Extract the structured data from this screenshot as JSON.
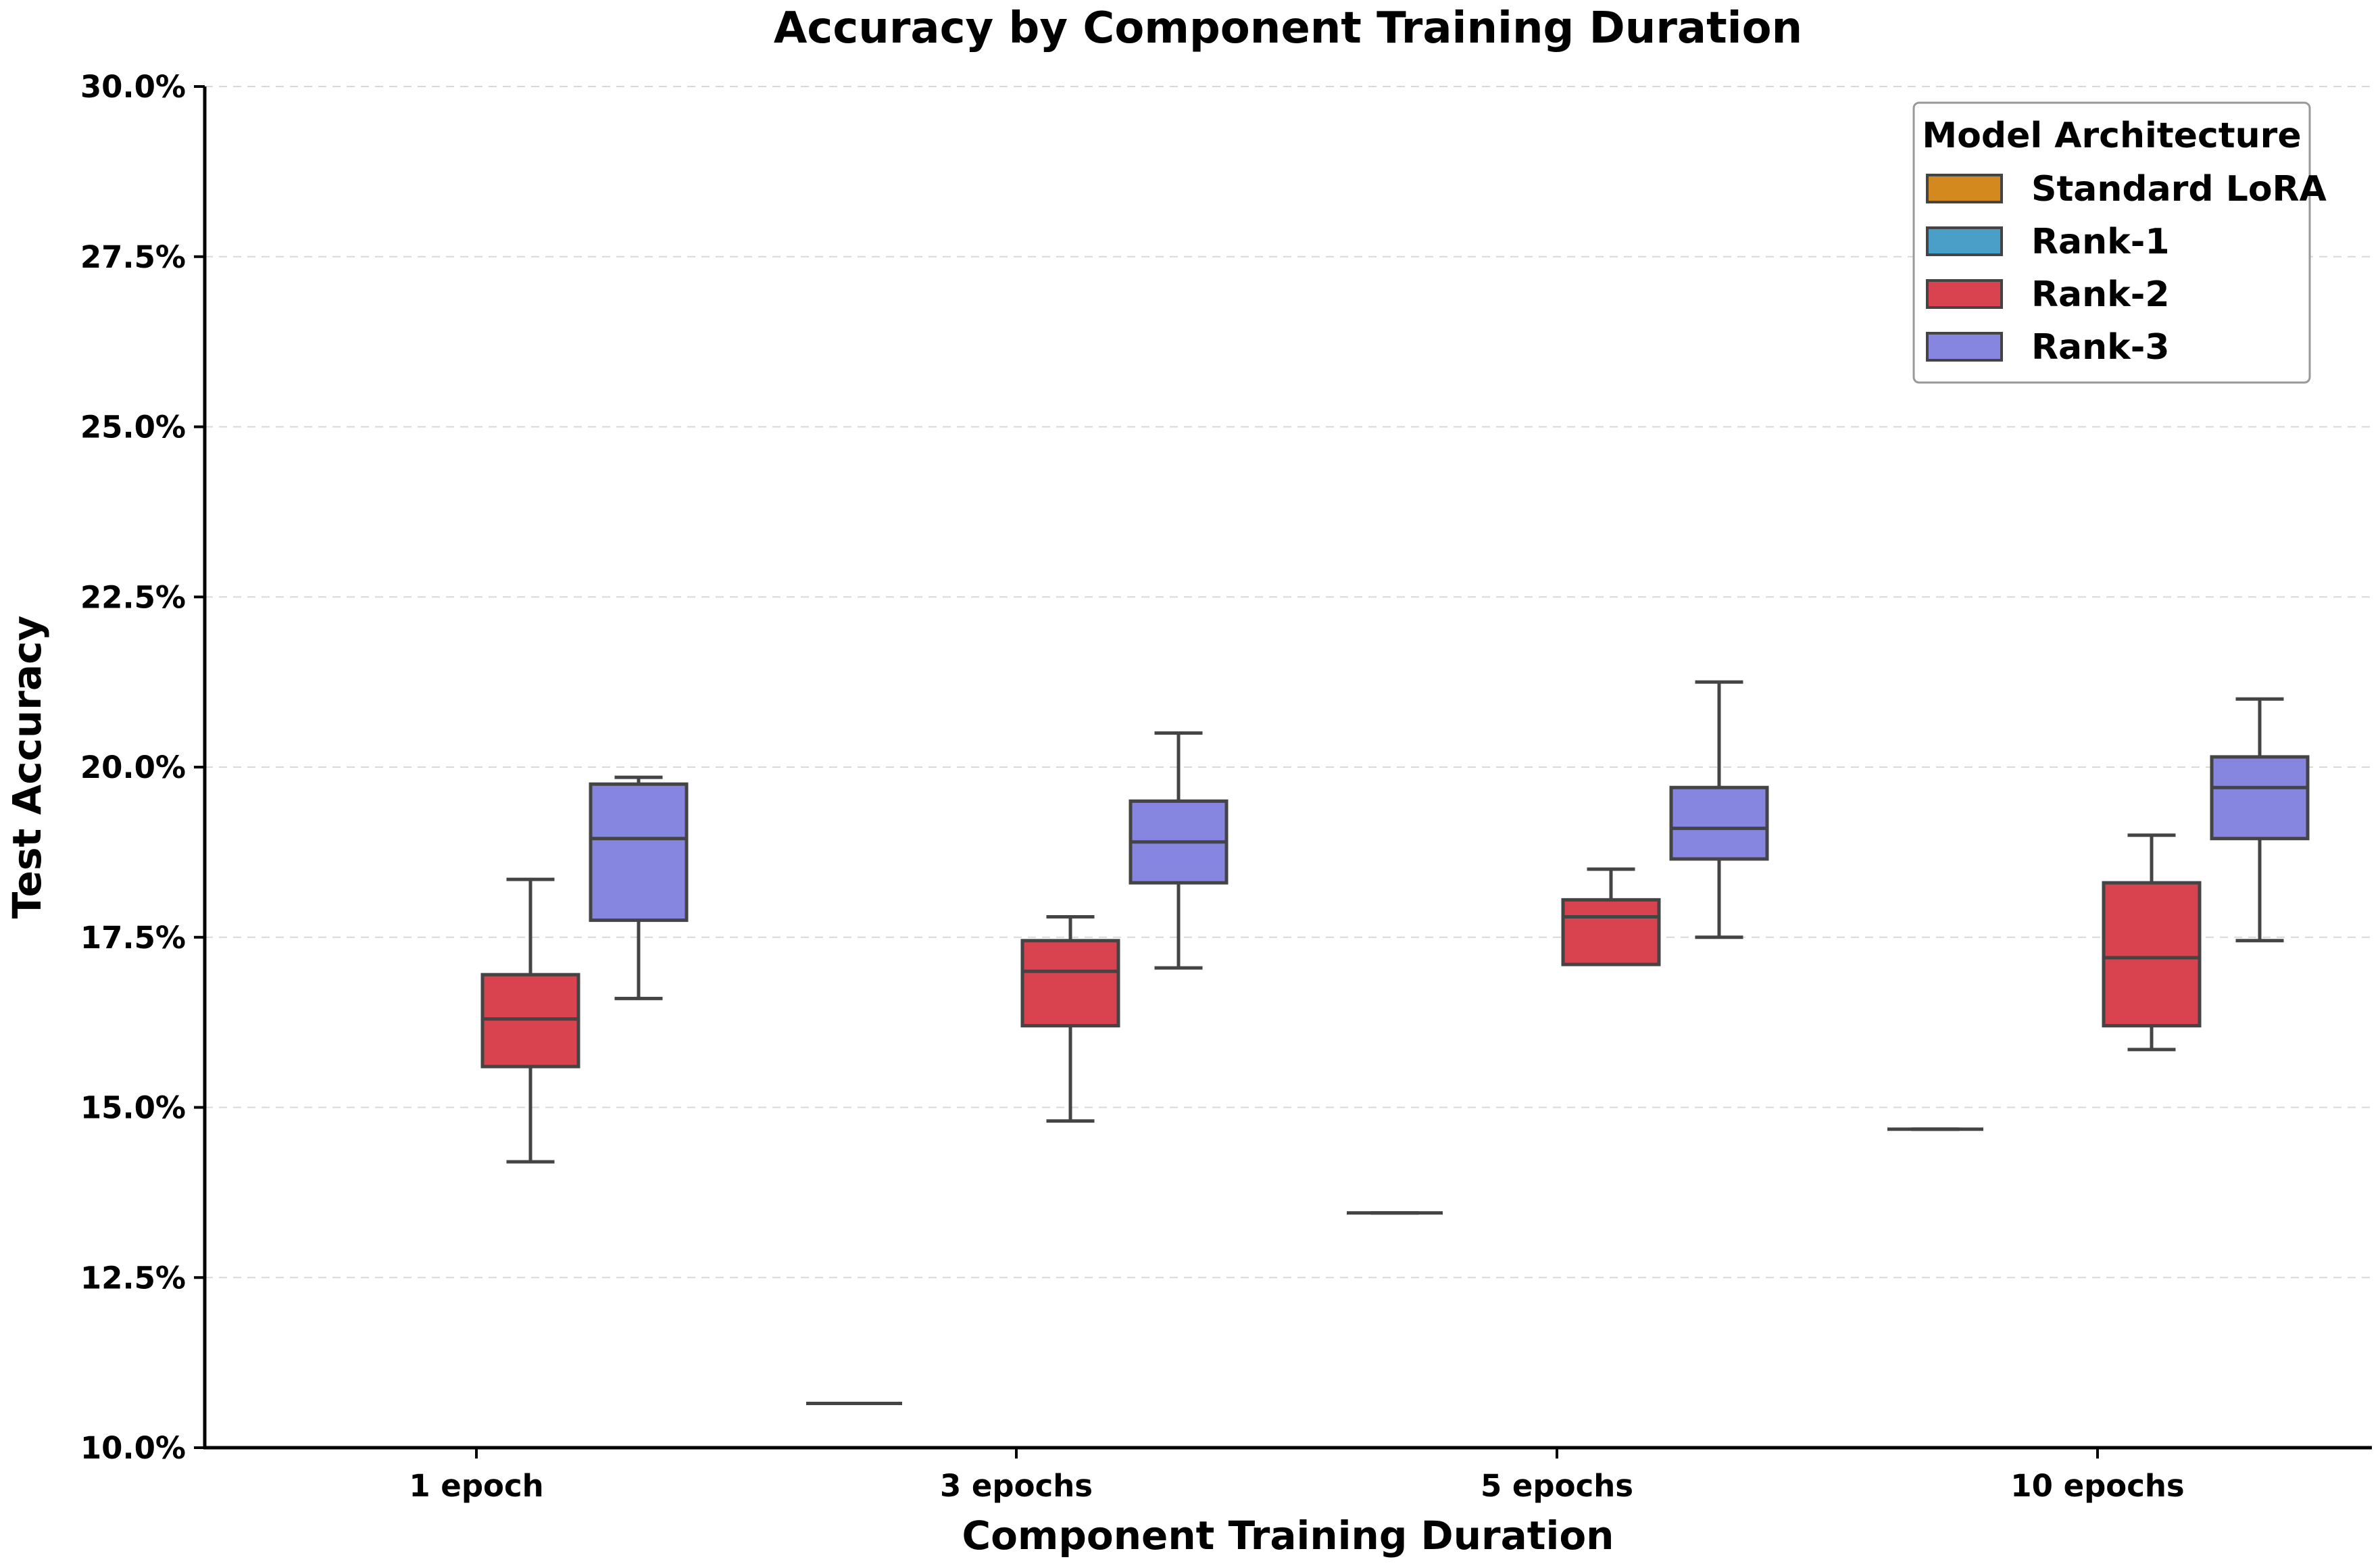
{
  "chart_data": {
    "type": "box",
    "title": "Accuracy by Component Training Duration",
    "xlabel": "Component Training Duration",
    "ylabel": "Test Accuracy",
    "ylim": [
      10.0,
      30.0
    ],
    "yticks": [
      10.0,
      12.5,
      15.0,
      17.5,
      20.0,
      22.5,
      25.0,
      27.5,
      30.0
    ],
    "ytick_labels": [
      "10.0%",
      "12.5%",
      "15.0%",
      "17.5%",
      "20.0%",
      "22.5%",
      "25.0%",
      "27.5%",
      "30.0%"
    ],
    "grid": "horizontal dashed",
    "categories": [
      "1 epoch",
      "3 epochs",
      "5 epochs",
      "10 epochs"
    ],
    "legend": {
      "title": "Model Architecture",
      "placement": "top-right",
      "entries": [
        {
          "name": "Standard LoRA",
          "color": "#d4891f"
        },
        {
          "name": "Rank-1",
          "color": "#4a9fc9"
        },
        {
          "name": "Rank-2",
          "color": "#d9434f"
        },
        {
          "name": "Rank-3",
          "color": "#8686e0"
        }
      ]
    },
    "series": [
      {
        "name": "Standard LoRA",
        "boxes": [
          null,
          {
            "min": 10.65,
            "q1": 10.65,
            "median": 10.65,
            "q3": 10.65,
            "max": 10.65
          },
          {
            "min": 13.45,
            "q1": 13.45,
            "median": 13.45,
            "q3": 13.45,
            "max": 13.45
          },
          {
            "min": 14.68,
            "q1": 14.68,
            "median": 14.68,
            "q3": 14.68,
            "max": 14.68
          }
        ]
      },
      {
        "name": "Rank-1",
        "boxes": [
          null,
          null,
          null,
          null
        ]
      },
      {
        "name": "Rank-2",
        "boxes": [
          {
            "min": 14.2,
            "q1": 15.6,
            "median": 16.3,
            "q3": 16.95,
            "max": 18.35
          },
          {
            "min": 14.8,
            "q1": 16.2,
            "median": 17.0,
            "q3": 17.45,
            "max": 17.8
          },
          {
            "min": 17.1,
            "q1": 17.1,
            "median": 17.8,
            "q3": 18.05,
            "max": 18.5
          },
          {
            "min": 15.85,
            "q1": 16.2,
            "median": 17.2,
            "q3": 18.3,
            "max": 19.0
          }
        ]
      },
      {
        "name": "Rank-3",
        "boxes": [
          {
            "min": 16.6,
            "q1": 17.75,
            "median": 18.95,
            "q3": 19.75,
            "max": 19.85
          },
          {
            "min": 17.05,
            "q1": 18.3,
            "median": 18.9,
            "q3": 19.5,
            "max": 20.5
          },
          {
            "min": 17.5,
            "q1": 18.65,
            "median": 19.1,
            "q3": 19.7,
            "max": 21.25
          },
          {
            "min": 17.45,
            "q1": 18.95,
            "median": 19.7,
            "q3": 20.15,
            "max": 21.0
          }
        ]
      }
    ]
  }
}
